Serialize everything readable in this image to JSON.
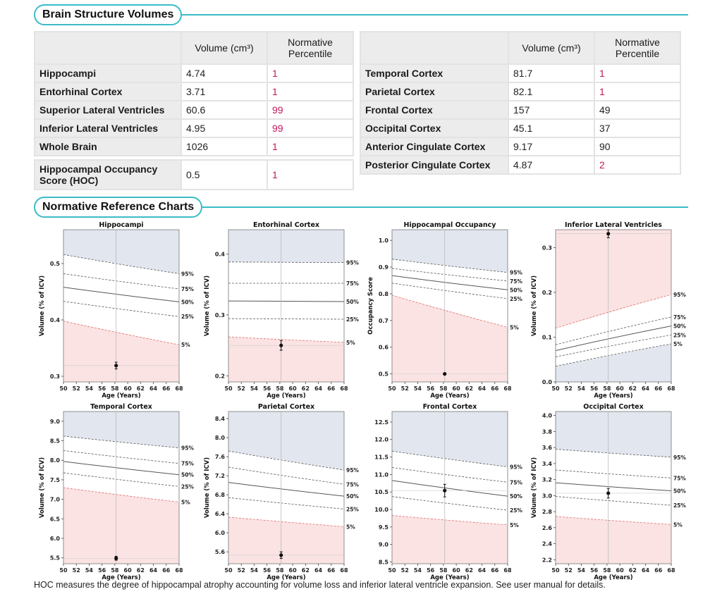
{
  "sections": {
    "volumes_title": "Brain Structure Volumes",
    "charts_title": "Normative Reference Charts"
  },
  "table_left": {
    "headers": [
      "",
      "Volume (cm³)",
      "Normative Percentile"
    ],
    "rows": [
      {
        "name": "Hippocampi",
        "volume": "4.74",
        "percentile": "1",
        "low": true
      },
      {
        "name": "Entorhinal Cortex",
        "volume": "3.71",
        "percentile": "1",
        "low": true
      },
      {
        "name": "Superior Lateral Ventricles",
        "volume": "60.6",
        "percentile": "99",
        "low": true
      },
      {
        "name": "Inferior Lateral Ventricles",
        "volume": "4.95",
        "percentile": "99",
        "low": true
      },
      {
        "name": "Whole Brain",
        "volume": "1026",
        "percentile": "1",
        "low": true
      }
    ],
    "hoc": {
      "name": "Hippocampal Occupancy Score (HOC)",
      "volume": "0.5",
      "percentile": "1",
      "low": true
    }
  },
  "table_right": {
    "headers": [
      "",
      "Volume (cm³)",
      "Normative Percentile"
    ],
    "rows": [
      {
        "name": "Temporal Cortex",
        "volume": "81.7",
        "percentile": "1",
        "low": true
      },
      {
        "name": "Parietal Cortex",
        "volume": "82.1",
        "percentile": "1",
        "low": true
      },
      {
        "name": "Frontal Cortex",
        "volume": "157",
        "percentile": "49",
        "low": false
      },
      {
        "name": "Occipital Cortex",
        "volume": "45.1",
        "percentile": "37",
        "low": false
      },
      {
        "name": "Anterior Cingulate Cortex",
        "volume": "9.17",
        "percentile": "90",
        "low": false
      },
      {
        "name": "Posterior Cingulate Cortex",
        "volume": "4.87",
        "percentile": "2",
        "low": true
      }
    ]
  },
  "footnote": "HOC measures the degree of hippocampal atrophy accounting for volume loss and inferior lateral ventricle expansion. See user manual for details.",
  "colors": {
    "accent": "#3bbcc8",
    "low_pct": "#c2185b",
    "red_zone": "#fbe3e3",
    "blue_zone": "#e1e6ef"
  },
  "chart_data": [
    {
      "type": "line",
      "title": "Hippocampi",
      "xlabel": "Age (Years)",
      "ylabel": "Volume (% of ICV)",
      "x": [
        50,
        68
      ],
      "xticks": [
        50,
        52,
        54,
        56,
        58,
        60,
        62,
        64,
        66,
        68
      ],
      "ylim": [
        0.29,
        0.56
      ],
      "yticks": [
        0.3,
        0.4,
        0.5
      ],
      "ytick_labels": [
        "0.3",
        "0.4",
        "0.5"
      ],
      "ytick_anchor": "0.5",
      "red": "below",
      "percentiles": [
        {
          "label": "95%",
          "y": [
            0.516,
            0.482
          ]
        },
        {
          "label": "75%",
          "y": [
            0.482,
            0.455
          ]
        },
        {
          "label": "50%",
          "y": [
            0.458,
            0.432
          ]
        },
        {
          "label": "25%",
          "y": [
            0.433,
            0.406
          ]
        },
        {
          "label": "5%",
          "y": [
            0.398,
            0.356
          ]
        }
      ],
      "subject": {
        "age": 58.2,
        "value": 0.319,
        "err": 0.006
      }
    },
    {
      "type": "line",
      "title": "Entorhinal Cortex",
      "xlabel": "Age (Years)",
      "ylabel": "Volume (% of ICV)",
      "x": [
        50,
        68
      ],
      "xticks": [
        50,
        52,
        54,
        56,
        58,
        60,
        62,
        64,
        66,
        68
      ],
      "ylim": [
        0.19,
        0.44
      ],
      "yticks": [
        0.2,
        0.3,
        0.4
      ],
      "ytick_labels": [
        "0.2",
        "0.3",
        "0.4"
      ],
      "ytick_anchor": "0.4",
      "red": "below",
      "percentiles": [
        {
          "label": "95%",
          "y": [
            0.387,
            0.386
          ]
        },
        {
          "label": "75%",
          "y": [
            0.352,
            0.352
          ]
        },
        {
          "label": "50%",
          "y": [
            0.323,
            0.322
          ]
        },
        {
          "label": "25%",
          "y": [
            0.294,
            0.293
          ]
        },
        {
          "label": "5%",
          "y": [
            0.264,
            0.255
          ]
        }
      ],
      "subject": {
        "age": 58.2,
        "value": 0.25,
        "err": 0.008
      }
    },
    {
      "type": "line",
      "title": "Hippocampal Occupancy",
      "xlabel": "Age (Years)",
      "ylabel": "Occupancy Score",
      "x": [
        50,
        68
      ],
      "xticks": [
        50,
        52,
        54,
        56,
        58,
        60,
        62,
        64,
        66,
        68
      ],
      "ylim": [
        0.47,
        1.04
      ],
      "yticks": [
        0.5,
        0.6,
        0.7,
        0.8,
        0.9,
        1.0
      ],
      "ytick_labels": [
        "0.5",
        "0.6",
        "0.7",
        "0.8",
        "0.9",
        "1.0"
      ],
      "ytick_anchor": "1.0",
      "red": "below",
      "percentiles": [
        {
          "label": "95%",
          "y": [
            0.93,
            0.88
          ]
        },
        {
          "label": "75%",
          "y": [
            0.895,
            0.848
          ]
        },
        {
          "label": "50%",
          "y": [
            0.868,
            0.815
          ]
        },
        {
          "label": "25%",
          "y": [
            0.84,
            0.782
          ]
        },
        {
          "label": "5%",
          "y": [
            0.795,
            0.675
          ]
        }
      ],
      "subject": {
        "age": 58.2,
        "value": 0.5,
        "err": 0.0
      }
    },
    {
      "type": "line",
      "title": "Inferior Lateral Ventricles",
      "xlabel": "Age (Years)",
      "ylabel": "Volume (% of ICV)",
      "x": [
        50,
        68
      ],
      "xticks": [
        50,
        52,
        54,
        56,
        58,
        60,
        62,
        64,
        66,
        68
      ],
      "ylim": [
        0.0,
        0.34
      ],
      "yticks": [
        0.0,
        0.1,
        0.2,
        0.3
      ],
      "ytick_labels": [
        "0.0",
        "0.1",
        "0.2",
        "0.3"
      ],
      "ytick_anchor": "0.3",
      "red": "above",
      "percentiles": [
        {
          "label": "95%",
          "y": [
            0.12,
            0.195
          ]
        },
        {
          "label": "75%",
          "y": [
            0.083,
            0.145
          ]
        },
        {
          "label": "50%",
          "y": [
            0.07,
            0.125
          ]
        },
        {
          "label": "25%",
          "y": [
            0.056,
            0.105
          ]
        },
        {
          "label": "5%",
          "y": [
            0.035,
            0.085
          ]
        }
      ],
      "subject": {
        "age": 58.2,
        "value": 0.331,
        "err": 0.009
      }
    },
    {
      "type": "line",
      "title": "Temporal Cortex",
      "xlabel": "Age (Years)",
      "ylabel": "Volume (% of ICV)",
      "x": [
        50,
        68
      ],
      "xticks": [
        50,
        52,
        54,
        56,
        58,
        60,
        62,
        64,
        66,
        68
      ],
      "ylim": [
        5.35,
        9.25
      ],
      "yticks": [
        5.5,
        6.0,
        6.5,
        7.0,
        7.5,
        8.0,
        8.5,
        9.0
      ],
      "ytick_labels": [
        "5.5",
        "6.0",
        "6.5",
        "7.0",
        "7.5",
        "8.0",
        "8.5",
        "9.0"
      ],
      "ytick_anchor": "9.0",
      "red": "below",
      "percentiles": [
        {
          "label": "95%",
          "y": [
            8.62,
            8.32
          ]
        },
        {
          "label": "75%",
          "y": [
            8.25,
            7.92
          ]
        },
        {
          "label": "50%",
          "y": [
            7.97,
            7.63
          ]
        },
        {
          "label": "25%",
          "y": [
            7.68,
            7.33
          ]
        },
        {
          "label": "5%",
          "y": [
            7.3,
            6.93
          ]
        }
      ],
      "subject": {
        "age": 58.2,
        "value": 5.49,
        "err": 0.05
      }
    },
    {
      "type": "line",
      "title": "Parietal Cortex",
      "xlabel": "Age (Years)",
      "ylabel": "Volume (% of ICV)",
      "x": [
        50,
        68
      ],
      "xticks": [
        50,
        52,
        54,
        56,
        58,
        60,
        62,
        64,
        66,
        68
      ],
      "ylim": [
        5.35,
        8.55
      ],
      "yticks": [
        5.6,
        6.0,
        6.4,
        6.8,
        7.2,
        7.6,
        8.0,
        8.4
      ],
      "ytick_labels": [
        "5.6",
        "6.0",
        "6.4",
        "6.8",
        "7.2",
        "7.6",
        "8.0",
        "8.4"
      ],
      "ytick_anchor": "8.4",
      "red": "below",
      "percentiles": [
        {
          "label": "95%",
          "y": [
            7.72,
            7.32
          ]
        },
        {
          "label": "75%",
          "y": [
            7.38,
            7.02
          ]
        },
        {
          "label": "50%",
          "y": [
            7.06,
            6.77
          ]
        },
        {
          "label": "25%",
          "y": [
            6.74,
            6.5
          ]
        },
        {
          "label": "5%",
          "y": [
            6.33,
            6.13
          ]
        }
      ],
      "subject": {
        "age": 58.2,
        "value": 5.53,
        "err": 0.07
      }
    },
    {
      "type": "line",
      "title": "Frontal Cortex",
      "xlabel": "Age (Years)",
      "ylabel": "",
      "x": [
        50,
        68
      ],
      "xticks": [
        50,
        52,
        54,
        56,
        58,
        60,
        62,
        64,
        66,
        68
      ],
      "ylim": [
        8.45,
        12.8
      ],
      "yticks": [
        8.5,
        9.0,
        9.5,
        10.0,
        10.5,
        11.0,
        11.5,
        12.0,
        12.5
      ],
      "ytick_labels": [
        "8.5",
        "9.0",
        "9.5",
        "10.0",
        "10.5",
        "11.0",
        "11.5",
        "12.0",
        "12.5"
      ],
      "ytick_anchor": "12.5",
      "red": "below",
      "percentiles": [
        {
          "label": "95%",
          "y": [
            11.67,
            11.22
          ]
        },
        {
          "label": "75%",
          "y": [
            11.2,
            10.78
          ]
        },
        {
          "label": "50%",
          "y": [
            10.83,
            10.38
          ]
        },
        {
          "label": "25%",
          "y": [
            10.37,
            9.98
          ]
        },
        {
          "label": "5%",
          "y": [
            9.83,
            9.56
          ]
        }
      ],
      "subject": {
        "age": 58.2,
        "value": 10.54,
        "err": 0.18
      }
    },
    {
      "type": "line",
      "title": "Occipital Cortex",
      "xlabel": "Age (Years)",
      "ylabel": "Volume (% of ICV)",
      "x": [
        50,
        68
      ],
      "xticks": [
        50,
        52,
        54,
        56,
        58,
        60,
        62,
        64,
        66,
        68
      ],
      "ylim": [
        2.15,
        4.05
      ],
      "yticks": [
        2.2,
        2.4,
        2.6,
        2.8,
        3.0,
        3.2,
        3.4,
        3.6,
        3.8,
        4.0
      ],
      "ytick_labels": [
        "2.2",
        "2.4",
        "2.6",
        "2.8",
        "3.0",
        "3.2",
        "3.4",
        "3.6",
        "3.8",
        "4.0"
      ],
      "ytick_anchor": "4.0",
      "red": "below",
      "percentiles": [
        {
          "label": "95%",
          "y": [
            3.58,
            3.48
          ]
        },
        {
          "label": "75%",
          "y": [
            3.32,
            3.22
          ]
        },
        {
          "label": "50%",
          "y": [
            3.16,
            3.06
          ]
        },
        {
          "label": "25%",
          "y": [
            2.99,
            2.88
          ]
        },
        {
          "label": "5%",
          "y": [
            2.74,
            2.64
          ]
        }
      ],
      "subject": {
        "age": 58.2,
        "value": 3.03,
        "err": 0.06
      }
    }
  ]
}
